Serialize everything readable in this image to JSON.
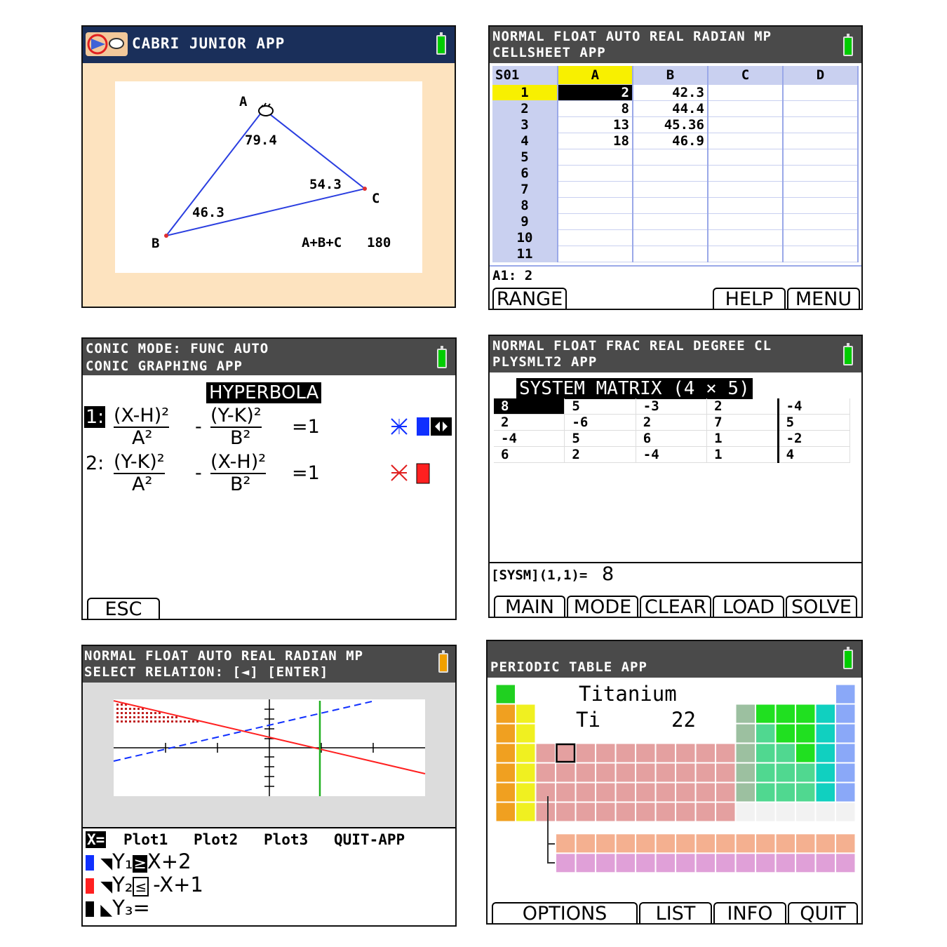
{
  "cabri": {
    "title": "CABRI JUNIOR APP",
    "vertex_a": "A",
    "vertex_b": "B",
    "vertex_c": "C",
    "angle_a": "79.4",
    "angle_b": "46.3",
    "angle_c": "54.3",
    "sum_label": "A+B+C",
    "sum_value": "180"
  },
  "cellsheet": {
    "status": "NORMAL FLOAT AUTO REAL RADIAN MP",
    "title": "CELLSHEET APP",
    "sheet": "S01",
    "columns": [
      "A",
      "B",
      "C",
      "D"
    ],
    "rows": [
      {
        "n": "1",
        "a": "2",
        "b": "42.3"
      },
      {
        "n": "2",
        "a": "8",
        "b": "44.4"
      },
      {
        "n": "3",
        "a": "13",
        "b": "45.36"
      },
      {
        "n": "4",
        "a": "18",
        "b": "46.9"
      },
      {
        "n": "5",
        "a": "",
        "b": ""
      },
      {
        "n": "6",
        "a": "",
        "b": ""
      },
      {
        "n": "7",
        "a": "",
        "b": ""
      },
      {
        "n": "8",
        "a": "",
        "b": ""
      },
      {
        "n": "9",
        "a": "",
        "b": ""
      },
      {
        "n": "10",
        "a": "",
        "b": ""
      },
      {
        "n": "11",
        "a": "",
        "b": ""
      }
    ],
    "cell_readout": "A1: 2",
    "softkeys": {
      "range": "RANGE",
      "help": "HELP",
      "menu": "MENU"
    }
  },
  "conic": {
    "status": "CONIC MODE: FUNC AUTO",
    "title": "CONIC GRAPHING APP",
    "heading": "HYPERBOLA",
    "eq1_index": "1:",
    "eq1_num1": "(X-H)²",
    "eq1_den1": "A²",
    "eq1_num2": "(Y-K)²",
    "eq1_den2": "B²",
    "eq1_rhs": "=1",
    "eq2_index": "2:",
    "eq2_num1": "(Y-K)²",
    "eq2_den1": "A²",
    "eq2_num2": "(X-H)²",
    "eq2_den2": "B²",
    "eq2_rhs": "=1",
    "minus": "-",
    "softkey_esc": "ESC"
  },
  "plysmlt": {
    "status": "NORMAL FLOAT FRAC REAL DEGREE CL",
    "title": "PLYSMLT2 APP",
    "heading": "SYSTEM MATRIX (4 × 5)",
    "matrix": [
      [
        "8",
        "5",
        "-3",
        "2",
        "-4"
      ],
      [
        "2",
        "-6",
        "2",
        "7",
        "5"
      ],
      [
        "-4",
        "5",
        "6",
        "1",
        "-2"
      ],
      [
        "6",
        "2",
        "-4",
        "1",
        "4"
      ]
    ],
    "readout_label": "[SYSM](1,1)=",
    "readout_value": "8",
    "softkeys": {
      "main": "MAIN",
      "mode": "MODE",
      "clear": "CLEAR",
      "load": "LOAD",
      "solve": "SOLVE"
    }
  },
  "inequality": {
    "status": "NORMAL FLOAT AUTO REAL RADIAN MP",
    "prompt": "SELECT RELATION: [◄] [ENTER]",
    "menu": {
      "xeq": "X=",
      "plot1": "Plot1",
      "plot2": "Plot2",
      "plot3": "Plot3",
      "quit": "QUIT-APP"
    },
    "y1_name": "Y₁",
    "y1_rel": "≥",
    "y1_expr": "X+2",
    "y2_name": "Y₂",
    "y2_rel": "≤",
    "y2_expr": "-X+1",
    "y3_name": "Y₃",
    "y3_rel": "=",
    "colors": {
      "y1": "#1030ff",
      "y2": "#ff2020",
      "x_line": "#20b020"
    }
  },
  "periodic": {
    "title": "PERIODIC TABLE APP",
    "element_name": "Titanium",
    "element_symbol": "Ti",
    "atomic_number": "22",
    "softkeys": {
      "options": "OPTIONS",
      "list": "LIST",
      "info": "INFO",
      "quit": "QUIT"
    }
  }
}
